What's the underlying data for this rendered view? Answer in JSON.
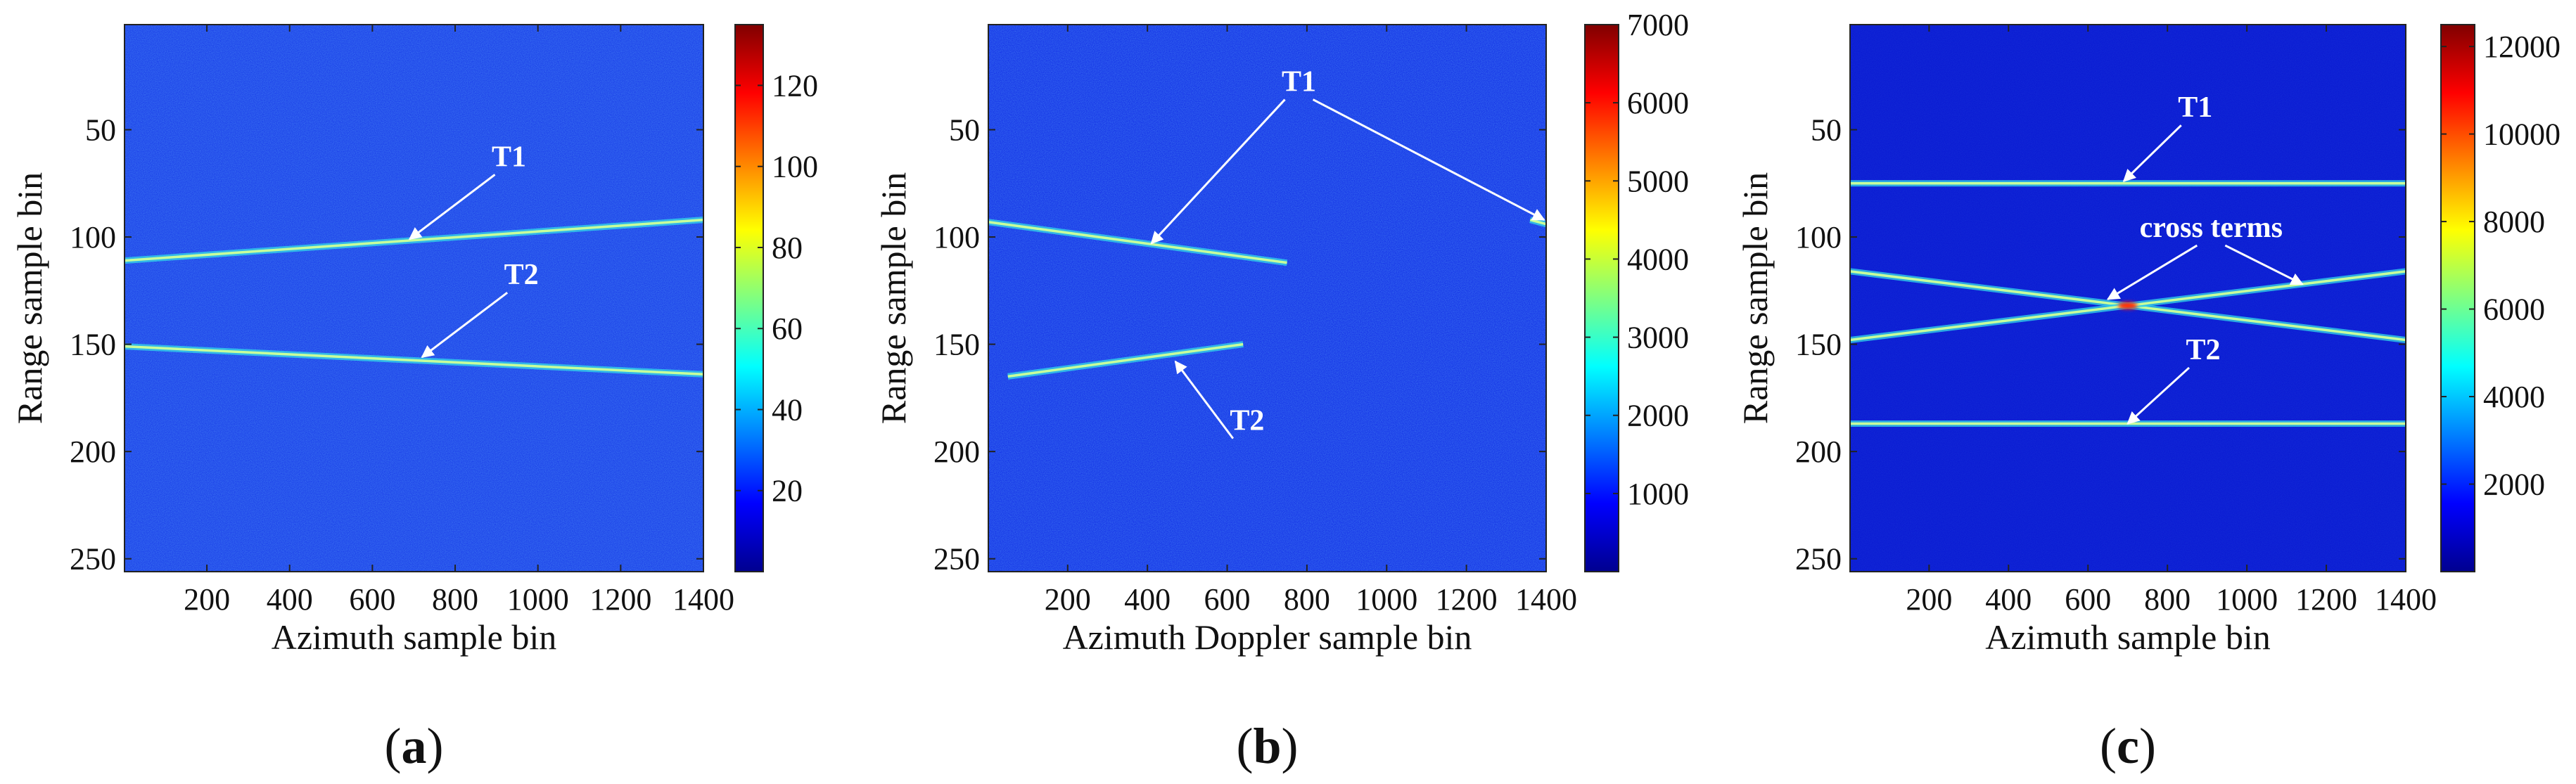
{
  "figure": {
    "panels": [
      {
        "id": "a",
        "caption_label": "(a)",
        "caption_letter": "a"
      },
      {
        "id": "b",
        "caption_label": "(b)",
        "caption_letter": "b"
      },
      {
        "id": "c",
        "caption_label": "(c)",
        "caption_letter": "c"
      }
    ]
  },
  "colors": {
    "colormap": [
      "#00008f",
      "#0000ff",
      "#0080ff",
      "#00ffff",
      "#80ff80",
      "#ffff00",
      "#ff8000",
      "#ff0000",
      "#800000"
    ],
    "background_a": "#1a3ee8",
    "background_b": "#1432e6",
    "background_c": "#0a1ad2",
    "stripe_core": "#c8ff9a",
    "stripe_edge": "#34d8e8",
    "annotation": "#ffffff"
  },
  "chart_data": [
    {
      "type": "heatmap",
      "panel": "a",
      "title": "",
      "xlabel": "Azimuth sample bin",
      "ylabel": "Range sample bin",
      "xlim": [
        1,
        1400
      ],
      "ylim": [
        256,
        1
      ],
      "xticks": [
        200,
        400,
        600,
        800,
        1000,
        1200,
        1400
      ],
      "yticks": [
        50,
        100,
        150,
        200,
        250
      ],
      "colorbar": {
        "range": [
          0,
          135
        ],
        "ticks": [
          20,
          40,
          60,
          80,
          100,
          120
        ]
      },
      "features": [
        {
          "kind": "line",
          "x": [
            1,
            1400
          ],
          "y": [
            111,
            92
          ]
        },
        {
          "kind": "line",
          "x": [
            1,
            1400
          ],
          "y": [
            151,
            164
          ]
        }
      ],
      "annotations": [
        {
          "label": "T1",
          "text_x": 930,
          "text_y": 67,
          "arrow_to_x": 690,
          "arrow_to_y": 101
        },
        {
          "label": "T2",
          "text_x": 960,
          "text_y": 122,
          "arrow_to_x": 720,
          "arrow_to_y": 156
        }
      ]
    },
    {
      "type": "heatmap",
      "panel": "b",
      "title": "",
      "xlabel": "Azimuth Doppler sample bin",
      "ylabel": "Range sample bin",
      "xlim": [
        1,
        1400
      ],
      "ylim": [
        256,
        1
      ],
      "xticks": [
        200,
        400,
        600,
        800,
        1000,
        1200,
        1400
      ],
      "yticks": [
        50,
        100,
        150,
        200,
        250
      ],
      "colorbar": {
        "range": [
          0,
          7000
        ],
        "ticks": [
          1000,
          2000,
          3000,
          4000,
          5000,
          6000,
          7000
        ]
      },
      "features": [
        {
          "kind": "line",
          "x": [
            1,
            750
          ],
          "y": [
            93,
            112
          ]
        },
        {
          "kind": "line",
          "x": [
            50,
            640
          ],
          "y": [
            165,
            150
          ]
        },
        {
          "kind": "line",
          "x": [
            1360,
            1400
          ],
          "y": [
            92,
            94
          ]
        }
      ],
      "annotations": [
        {
          "label": "T1",
          "text_x": 780,
          "text_y": 32,
          "arrow_to_x": 410,
          "arrow_to_y": 103,
          "arrow2_to_x": 1395,
          "arrow2_to_y": 92
        },
        {
          "label": "T2",
          "text_x": 650,
          "text_y": 190,
          "arrow_to_x": 470,
          "arrow_to_y": 158
        }
      ]
    },
    {
      "type": "heatmap",
      "panel": "c",
      "title": "",
      "xlabel": "Azimuth sample bin",
      "ylabel": "Range sample bin",
      "xlim": [
        1,
        1400
      ],
      "ylim": [
        256,
        1
      ],
      "xticks": [
        200,
        400,
        600,
        800,
        1000,
        1200,
        1400
      ],
      "yticks": [
        50,
        100,
        150,
        200,
        250
      ],
      "colorbar": {
        "range": [
          0,
          12500
        ],
        "ticks": [
          2000,
          4000,
          6000,
          8000,
          10000,
          12000
        ]
      },
      "features": [
        {
          "kind": "line",
          "x": [
            1,
            1400
          ],
          "y": [
            75,
            75
          ]
        },
        {
          "kind": "line",
          "x": [
            1,
            1400
          ],
          "y": [
            187,
            187
          ]
        },
        {
          "kind": "line",
          "x": [
            1,
            1400
          ],
          "y": [
            116,
            148
          ]
        },
        {
          "kind": "line",
          "x": [
            1,
            1400
          ],
          "y": [
            148,
            116
          ]
        }
      ],
      "annotations": [
        {
          "label": "T1",
          "text_x": 870,
          "text_y": 44,
          "arrow_to_x": 690,
          "arrow_to_y": 74
        },
        {
          "label": "cross terms",
          "text_x": 910,
          "text_y": 100,
          "arrow_to_x": 650,
          "arrow_to_y": 129,
          "arrow2_to_x": 1140,
          "arrow2_to_y": 122
        },
        {
          "label": "T2",
          "text_x": 890,
          "text_y": 157,
          "arrow_to_x": 700,
          "arrow_to_y": 187
        }
      ]
    }
  ]
}
